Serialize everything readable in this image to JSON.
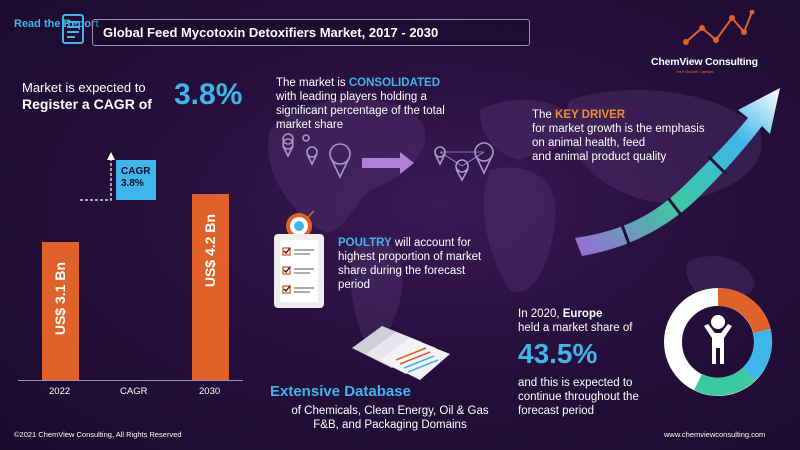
{
  "header": {
    "read_report": "Read the Report",
    "title": "Global Feed Mycotoxin Detoxifiers Market, 2017 - 2030"
  },
  "logo": {
    "name": "ChemView Consulting",
    "tagline": "Your Growth Catalyst"
  },
  "cagr_section": {
    "line1": "Market is expected to",
    "line2": "Register a CAGR of",
    "value": "3.8%"
  },
  "chart_data": {
    "type": "bar",
    "categories": [
      "2022",
      "CAGR",
      "2030"
    ],
    "values": [
      3.1,
      null,
      4.2
    ],
    "bar_labels": [
      "US$ 3.1 Bn",
      "",
      "US$ 4.2 Bn"
    ],
    "cagr_tag": "CAGR 3.8%",
    "ylim": [
      0,
      5
    ],
    "bar_color": "#e0622a"
  },
  "consolidated": {
    "pre": "The market is ",
    "keyword": "CONSOLIDATED",
    "line2": "with leading players holding a",
    "line3": "significant percentage of the total",
    "line4": "market share"
  },
  "driver": {
    "pre": "The ",
    "keyword": "KEY DRIVER",
    "line2": "for market growth is the emphasis",
    "line3": "on animal health, feed",
    "line4": "and animal product quality"
  },
  "poultry": {
    "keyword": "POULTRY",
    "line1_rest": " will account for",
    "line2": "highest proportion of market",
    "line3": "share during the forecast",
    "line4": "period"
  },
  "europe": {
    "line1_pre": "In 2020, ",
    "line1_keyword": "Europe",
    "line2": "held a market share of",
    "value": "43.5%",
    "line3": "and this is expected to",
    "line4": "continue throughout the",
    "line5": "forecast period",
    "share": 0.435
  },
  "database": {
    "title": "Extensive Database",
    "line1": "of Chemicals, Clean Energy, Oil & Gas",
    "line2": "F&B, and Packaging Domains"
  },
  "footer": {
    "copyright": "©2021 ChemView Consulting, All Rights Reserved",
    "website": "www.chemviewconsulting.com"
  },
  "colors": {
    "accent_blue": "#3fb6ea",
    "accent_orange": "#e0622a",
    "accent_green": "#3cc9a0",
    "accent_purple": "#9b6ad6",
    "background": "#260f3d"
  }
}
